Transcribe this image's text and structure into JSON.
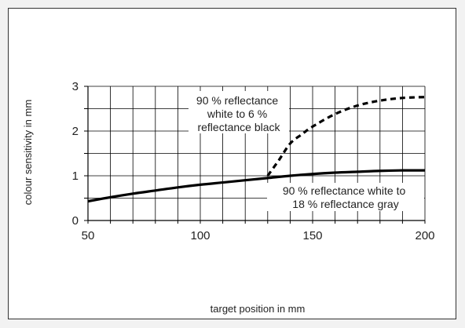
{
  "chart_data": {
    "type": "line",
    "title": "",
    "xlabel": "target position in mm",
    "ylabel": "colour sensitivity in mm",
    "xlim": [
      50,
      200
    ],
    "ylim": [
      0,
      3
    ],
    "x_ticks": [
      "50",
      "100",
      "150",
      "200"
    ],
    "y_ticks": [
      "0",
      "1",
      "2",
      "3"
    ],
    "x_minor_step": 10,
    "y_minor_step": 0.5,
    "grid": true,
    "series": [
      {
        "style": "solid",
        "color": "#000000",
        "x": [
          50,
          60,
          70,
          80,
          90,
          100,
          110,
          120,
          130,
          140,
          150,
          160,
          170,
          180,
          190,
          200
        ],
        "y": [
          0.43,
          0.52,
          0.6,
          0.67,
          0.74,
          0.8,
          0.85,
          0.9,
          0.95,
          1.0,
          1.04,
          1.07,
          1.09,
          1.11,
          1.12,
          1.12
        ]
      },
      {
        "style": "dashed",
        "color": "#000000",
        "x": [
          130,
          135,
          140,
          145,
          150,
          160,
          170,
          180,
          190,
          200
        ],
        "y": [
          1.0,
          1.35,
          1.72,
          1.92,
          2.1,
          2.38,
          2.57,
          2.68,
          2.74,
          2.76
        ]
      }
    ],
    "annotations": [
      {
        "lines": [
          "90 % reflectance",
          "white to 6 %",
          "reflectance black"
        ]
      },
      {
        "lines": [
          "90 % reflectance white to",
          "18 % reflectance gray"
        ]
      }
    ]
  }
}
